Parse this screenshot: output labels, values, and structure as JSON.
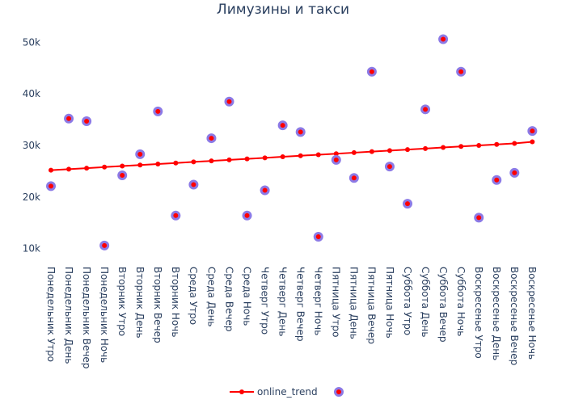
{
  "chart_data": {
    "type": "scatter",
    "title": "Лимузины и такси",
    "xlabel": "",
    "ylabel": "",
    "grid": false,
    "legend_position": "bottom",
    "categories": [
      "Понедельник Утро",
      "Понедельник День",
      "Понедельник Вечер",
      "Понедельник Ночь",
      "Вторник Утро",
      "Вторник День",
      "Вторник Вечер",
      "Вторник Ночь",
      "Среда Утро",
      "Среда День",
      "Среда Вечер",
      "Среда Ночь",
      "Четверг Утро",
      "Четверг День",
      "Четверг Вечер",
      "Четверг Ночь",
      "Пятница Утро",
      "Пятница День",
      "Пятница Вечер",
      "Пятница Ночь",
      "Суббота Утро",
      "Суббота День",
      "Суббота Вечер",
      "Суббота Ночь",
      "Воскресенье Утро",
      "Воскресенье День",
      "Воскресенье Вечер",
      "Воскресенье Ночь"
    ],
    "y_ticks": [
      10000,
      20000,
      30000,
      40000,
      50000
    ],
    "y_tick_labels": [
      "10k",
      "20k",
      "30k",
      "40k",
      "50k"
    ],
    "ylim": [
      6500,
      53500
    ],
    "series": [
      {
        "name": "online_trend",
        "mode": "lines+markers",
        "color": "#ff0000",
        "values": [
          25200,
          25400,
          25600,
          25800,
          26000,
          26200,
          26400,
          26600,
          26800,
          27000,
          27200,
          27400,
          27600,
          27800,
          28000,
          28200,
          28400,
          28600,
          28800,
          29000,
          29200,
          29400,
          29600,
          29800,
          30000,
          30200,
          30400,
          30700
        ]
      },
      {
        "name": "",
        "mode": "markers",
        "color": "#ff0000",
        "outline_color": "#8c7ae6",
        "values": [
          22100,
          35200,
          34700,
          10600,
          24200,
          28300,
          36600,
          16400,
          22400,
          31400,
          38500,
          16400,
          21300,
          33900,
          32600,
          12300,
          27200,
          23700,
          44300,
          25900,
          18700,
          37000,
          50600,
          44300,
          16000,
          23300,
          24700,
          32800
        ]
      }
    ]
  }
}
